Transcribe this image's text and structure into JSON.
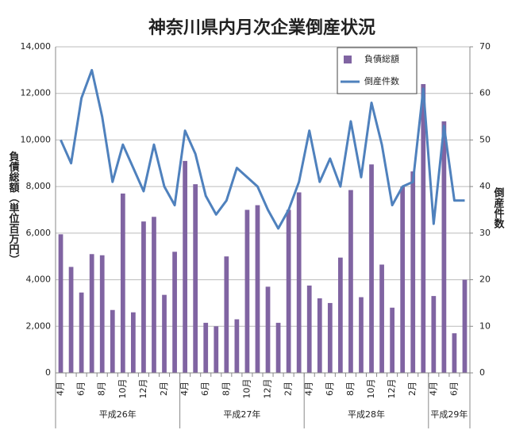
{
  "chart_data": {
    "type": "combo",
    "title": "神奈川県内月次企業倒産状況",
    "y_label": "負債総額（単位百万円）",
    "y2_label": "倒産件数",
    "category_groups": [
      {
        "label": "平成26年",
        "categories": [
          "4月",
          null,
          "6月",
          null,
          "8月",
          null,
          "10月",
          null,
          "12月",
          null,
          "2月",
          null
        ]
      },
      {
        "label": "平成27年",
        "categories": [
          "4月",
          null,
          "6月",
          null,
          "8月",
          null,
          "10月",
          null,
          "12月",
          null,
          "2月",
          null
        ]
      },
      {
        "label": "平成28年",
        "categories": [
          "4月",
          null,
          "6月",
          null,
          "8月",
          null,
          "10月",
          null,
          "12月",
          null,
          "2月",
          null
        ]
      },
      {
        "label": "平成29年",
        "categories": [
          "4月",
          null,
          "6月",
          null
        ]
      }
    ],
    "series": [
      {
        "name": "負債総額",
        "type": "bar",
        "color": "#8064a2",
        "values": [
          5950,
          4550,
          3450,
          5100,
          5050,
          2700,
          7700,
          2600,
          6500,
          6700,
          3350,
          5200,
          9100,
          8100,
          2150,
          2000,
          5000,
          2300,
          7000,
          7200,
          3700,
          2150,
          7000,
          7750,
          3750,
          3200,
          3000,
          4950,
          7850,
          3250,
          8950,
          4650,
          2800,
          8000,
          8650,
          12400,
          3300,
          10800,
          1700,
          4000
        ]
      },
      {
        "name": "倒産件数",
        "type": "line",
        "axis": "y2",
        "color": "#4f81bd",
        "values": [
          50,
          45,
          59,
          65,
          55,
          41,
          49,
          44,
          39,
          49,
          40,
          36,
          52,
          47,
          38,
          34,
          37,
          44,
          42,
          40,
          35,
          31,
          35,
          41,
          52,
          41,
          46,
          40,
          54,
          42,
          58,
          49,
          36,
          40,
          41,
          61,
          32,
          53,
          37,
          37
        ]
      }
    ],
    "ylim": [
      0,
      14000
    ],
    "yticks": [
      0,
      {
        "value": 2000,
        "label": "2,000"
      },
      {
        "value": 4000,
        "label": "4,000"
      },
      {
        "value": 6000,
        "label": "6,000"
      },
      {
        "value": 8000,
        "label": "8,000"
      },
      {
        "value": 10000,
        "label": "10,000"
      },
      {
        "value": 12000,
        "label": "12,000"
      },
      {
        "value": 14000,
        "label": "14,000"
      }
    ],
    "y2lim": [
      0,
      70
    ],
    "y2ticks": [
      0,
      10,
      20,
      30,
      40,
      50,
      60,
      70
    ],
    "grid": true,
    "legend": "top-right"
  }
}
